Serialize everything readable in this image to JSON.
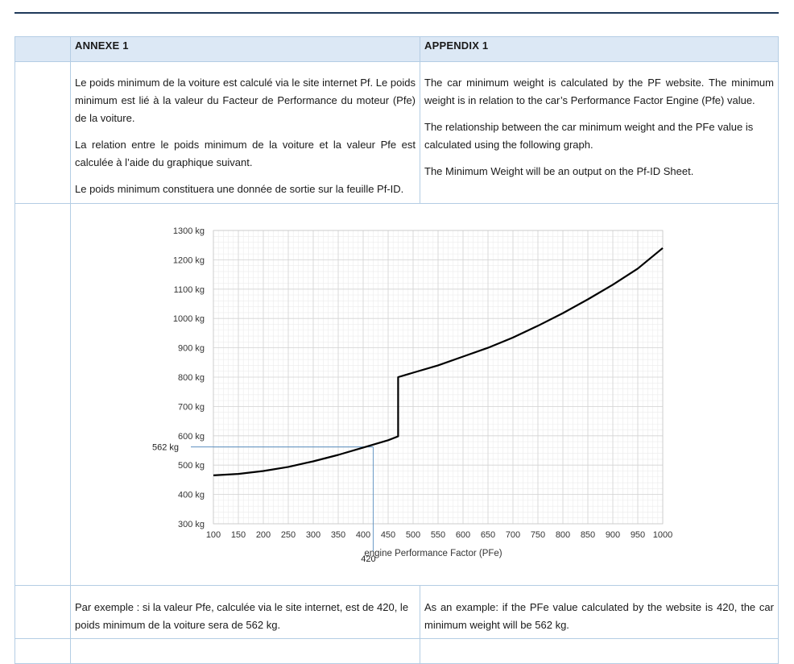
{
  "header": {
    "left": "ANNEXE 1",
    "right": "APPENDIX 1"
  },
  "intro": {
    "fr": [
      "Le poids minimum de la voiture est calculé via le site internet Pf. Le poids minimum est lié à la valeur du Facteur de Performance du moteur (Pfe) de la voiture.",
      "La relation entre le poids minimum de la voiture et la valeur Pfe est calculée à l’aide du graphique suivant.",
      "Le poids minimum constituera une donnée de sortie sur la feuille Pf-ID."
    ],
    "en": [
      "The car minimum weight is calculated by the PF website. The minimum weight is in relation to the car’s Performance Factor Engine (Pfe) value.",
      "The relationship between the car minimum weight and the PFe value is calculated using the following graph.",
      "The Minimum Weight will be an output on the Pf-ID Sheet."
    ]
  },
  "chart_data": {
    "type": "line",
    "title": "",
    "xlabel": "engine Performance Factor (PFe)",
    "ylabel": "",
    "xlim": [
      100,
      1000
    ],
    "ylim": [
      300,
      1300
    ],
    "x_ticks": [
      100,
      150,
      200,
      250,
      300,
      350,
      400,
      450,
      500,
      550,
      600,
      650,
      700,
      750,
      800,
      850,
      900,
      950,
      1000
    ],
    "y_ticks": [
      300,
      400,
      500,
      600,
      700,
      800,
      900,
      1000,
      1100,
      1200,
      1300
    ],
    "y_unit": "kg",
    "grid": true,
    "series": [
      {
        "x": [
          100,
          150,
          200,
          250,
          300,
          350,
          400,
          450,
          470
        ],
        "y": [
          465,
          470,
          480,
          494,
          513,
          535,
          560,
          585,
          598
        ]
      },
      {
        "x": [
          470,
          500,
          550,
          600,
          650,
          700,
          750,
          800,
          850,
          900,
          950,
          1000
        ],
        "y": [
          800,
          815,
          840,
          870,
          900,
          935,
          975,
          1018,
          1065,
          1115,
          1170,
          1240
        ]
      }
    ],
    "annotation": {
      "x": 420,
      "y": 562,
      "x_label": "420",
      "y_label": "562 kg"
    }
  },
  "example": {
    "fr": "Par exemple : si la valeur Pfe, calculée via le site internet, est de 420, le poids minimum de la voiture sera de 562 kg.",
    "en": "As an example: if the PFe value calculated by the website is 420, the car minimum weight will be 562 kg."
  }
}
